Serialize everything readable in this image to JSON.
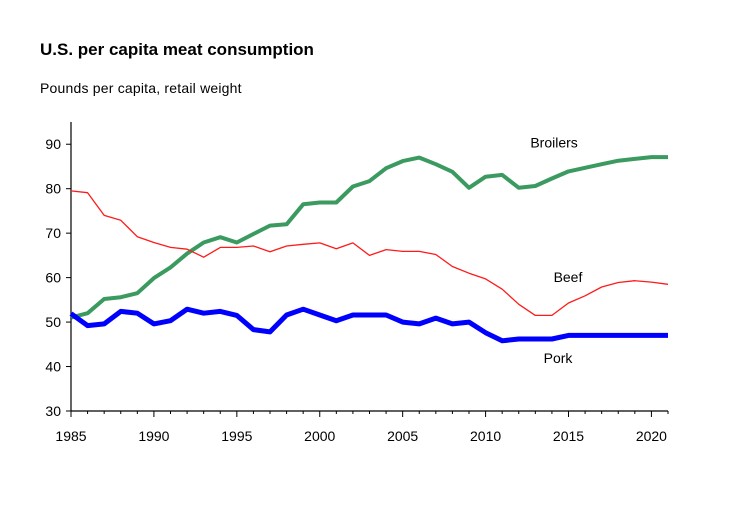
{
  "chart_data": {
    "type": "line",
    "title": "U.S. per capita meat consumption",
    "subtitle": "Pounds per capita, retail weight",
    "xlabel": "",
    "ylabel": "",
    "xlim": [
      1985,
      2021
    ],
    "ylim": [
      30,
      95
    ],
    "x_ticks": [
      1985,
      1990,
      1995,
      2000,
      2005,
      2010,
      2015,
      2020
    ],
    "y_ticks": [
      30,
      40,
      50,
      60,
      70,
      80,
      90
    ],
    "grid": false,
    "legend": "inline labels",
    "x": [
      1985,
      1986,
      1987,
      1988,
      1989,
      1990,
      1991,
      1992,
      1993,
      1994,
      1995,
      1996,
      1997,
      1998,
      1999,
      2000,
      2001,
      2002,
      2003,
      2004,
      2005,
      2006,
      2007,
      2008,
      2009,
      2010,
      2011,
      2012,
      2013,
      2014,
      2015,
      2016,
      2017,
      2018,
      2019,
      2020,
      2021
    ],
    "series": [
      {
        "name": "Broilers",
        "color": "#3a9a5f",
        "stroke": 4,
        "label_year": 2012.7,
        "label_value": 89.3,
        "values": [
          51.0,
          52.0,
          55.2,
          55.6,
          56.5,
          59.9,
          62.3,
          65.4,
          67.9,
          69.1,
          67.9,
          69.8,
          71.7,
          72.0,
          76.5,
          76.9,
          76.9,
          80.5,
          81.7,
          84.6,
          86.2,
          87.0,
          85.5,
          83.8,
          80.2,
          82.7,
          83.1,
          80.2,
          80.6,
          82.3,
          83.9,
          84.7,
          85.5,
          86.3,
          86.7,
          87.1,
          87.1
        ]
      },
      {
        "name": "Beef",
        "color": "#ff1a1a",
        "stroke": 1.3,
        "label_year": 2014.1,
        "label_value": 59.0,
        "values": [
          79.5,
          79.1,
          74.0,
          72.9,
          69.2,
          67.9,
          66.8,
          66.4,
          64.6,
          66.8,
          66.8,
          67.1,
          65.8,
          67.1,
          67.5,
          67.8,
          66.5,
          67.8,
          65.0,
          66.3,
          65.9,
          65.9,
          65.2,
          62.5,
          61.0,
          59.7,
          57.4,
          54.0,
          51.5,
          51.5,
          54.3,
          55.9,
          57.9,
          58.9,
          59.3,
          59.0,
          58.5
        ]
      },
      {
        "name": "Pork",
        "color": "#0000ff",
        "stroke": 5,
        "label_year": 2013.5,
        "label_value": 40.8,
        "values": [
          51.9,
          49.2,
          49.6,
          52.4,
          52.0,
          49.6,
          50.3,
          52.9,
          52.0,
          52.4,
          51.5,
          48.3,
          47.8,
          51.6,
          52.9,
          51.6,
          50.3,
          51.6,
          51.6,
          51.6,
          50.0,
          49.6,
          50.9,
          49.6,
          50.0,
          47.6,
          45.8,
          46.2,
          46.2,
          46.2,
          47.0,
          47.0,
          47.0,
          47.0,
          47.0,
          47.0,
          47.0
        ]
      }
    ]
  }
}
